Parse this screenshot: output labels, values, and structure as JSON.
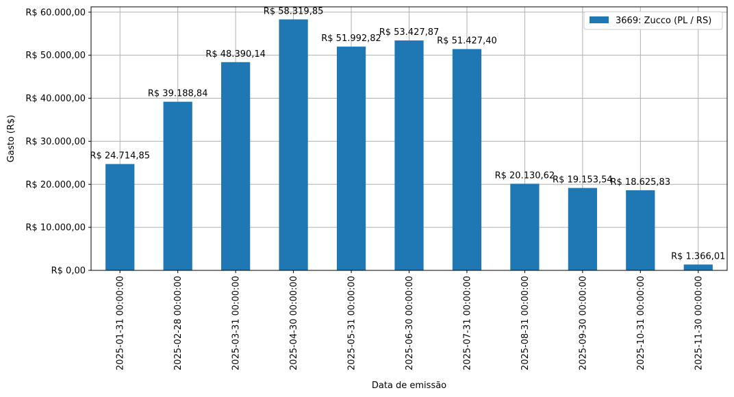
{
  "chart_data": {
    "type": "bar",
    "xlabel": "Data de emissão",
    "ylabel": "Gasto (R$)",
    "categories": [
      "2025-01-31 00:00:00",
      "2025-02-28 00:00:00",
      "2025-03-31 00:00:00",
      "2025-04-30 00:00:00",
      "2025-05-31 00:00:00",
      "2025-06-30 00:00:00",
      "2025-07-31 00:00:00",
      "2025-08-31 00:00:00",
      "2025-09-30 00:00:00",
      "2025-10-31 00:00:00",
      "2025-11-30 00:00:00"
    ],
    "series": [
      {
        "name": "3669: Zucco (PL / RS)",
        "color": "#1f77b4",
        "values": [
          24714.85,
          39188.84,
          48390.14,
          58319.85,
          51992.82,
          53427.87,
          51427.4,
          20130.62,
          19153.54,
          18625.83,
          1366.01
        ],
        "data_labels": [
          "R$ 24.714,85",
          "R$ 39.188,84",
          "R$ 48.390,14",
          "R$ 58.319,85",
          "R$ 51.992,82",
          "R$ 53.427,87",
          "R$ 51.427,40",
          "R$ 20.130,62",
          "R$ 19.153,54",
          "R$ 18.625,83",
          "R$ 1.366,01"
        ]
      }
    ],
    "ylim": [
      0,
      61235.84
    ],
    "yticks": [
      0,
      10000,
      20000,
      30000,
      40000,
      50000,
      60000
    ],
    "ytick_labels": [
      "R$ 0,00",
      "R$ 10.000,00",
      "R$ 20.000,00",
      "R$ 30.000,00",
      "R$ 40.000,00",
      "R$ 50.000,00",
      "R$ 60.000,00"
    ],
    "grid": true,
    "legend_position": "top-right"
  }
}
